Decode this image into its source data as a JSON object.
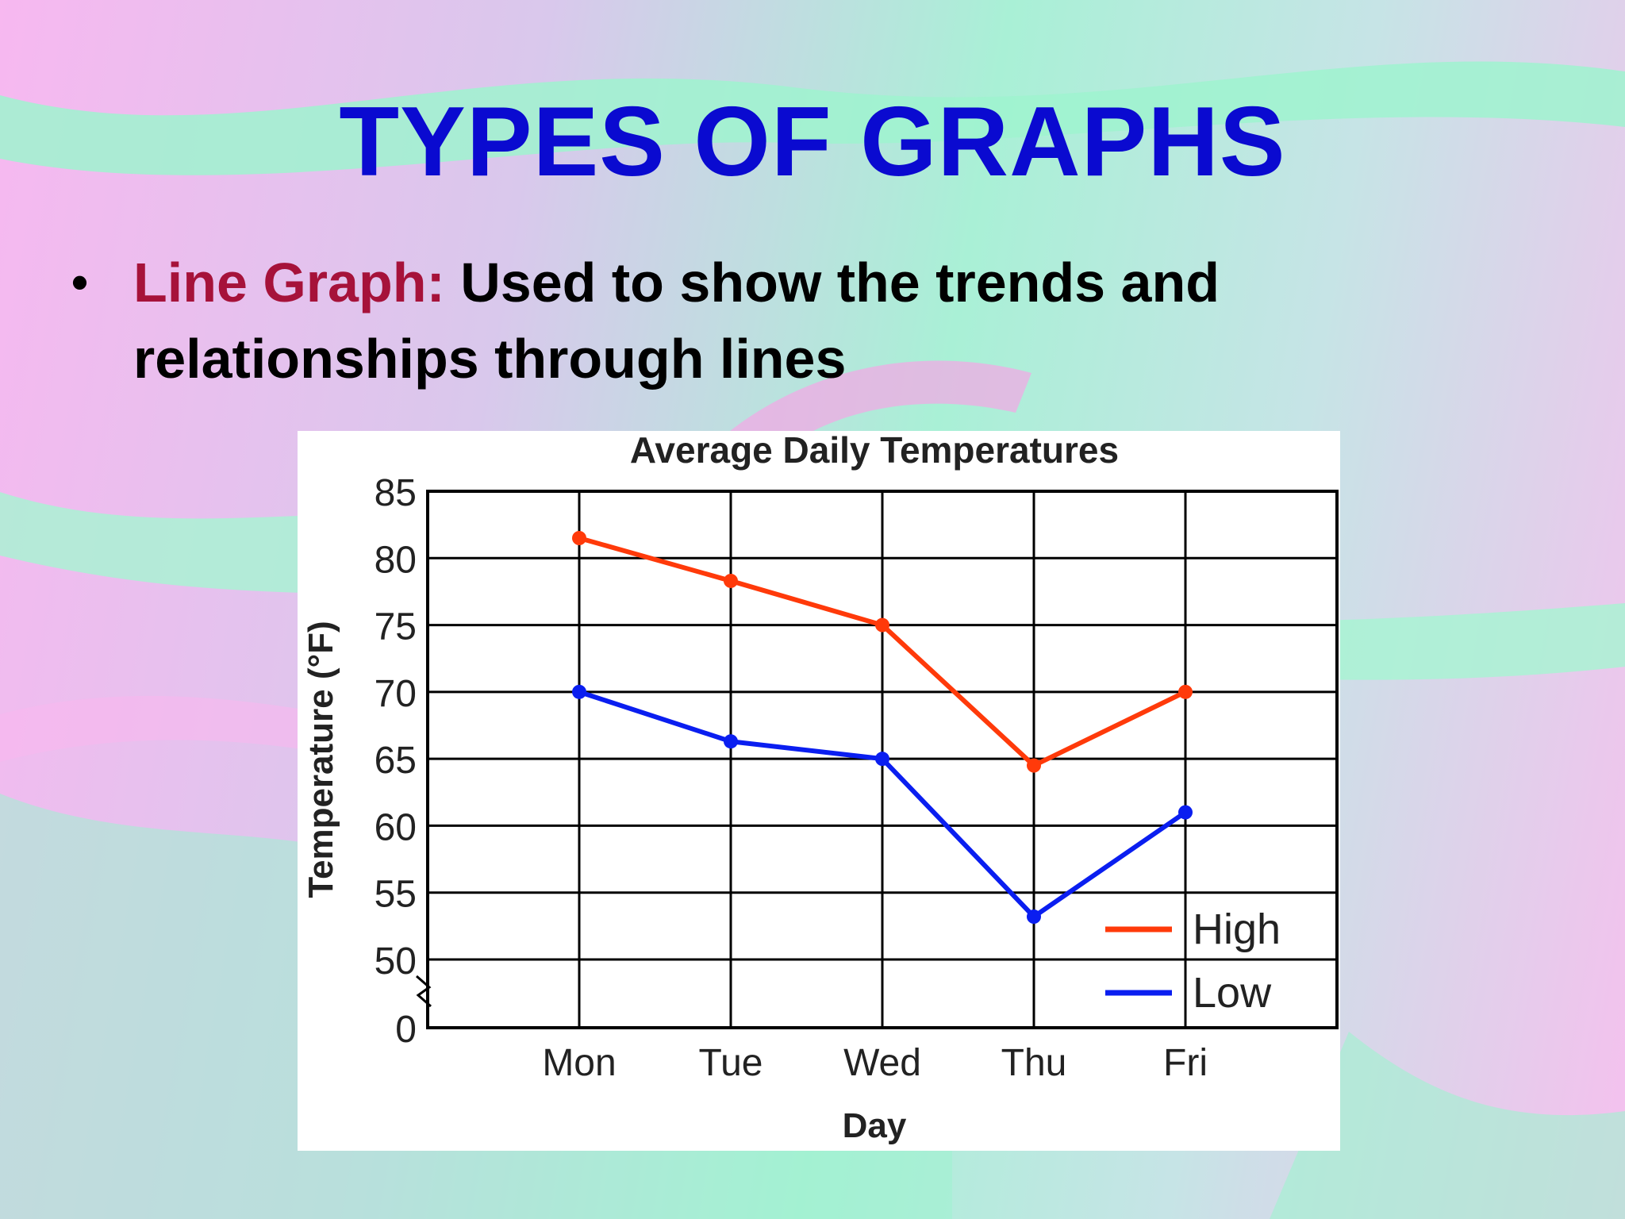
{
  "slide": {
    "title": "TYPES OF GRAPHS",
    "bullet": {
      "term": "Line Graph:",
      "text": " Used to show the trends and relationships through lines"
    }
  },
  "colors": {
    "title": "#0a0ad0",
    "term": "#a6123a",
    "high_series": "#ff3a0a",
    "low_series": "#0a1ef0"
  },
  "chart_data": {
    "type": "line",
    "title": "Average Daily Temperatures",
    "xlabel": "Day",
    "ylabel": "Temperature (°F)",
    "categories": [
      "Mon",
      "Tue",
      "Wed",
      "Thu",
      "Fri"
    ],
    "y_ticks": [
      "0",
      "50",
      "55",
      "60",
      "65",
      "70",
      "75",
      "80",
      "85"
    ],
    "ylim": [
      45,
      85
    ],
    "axis_break": true,
    "grid": true,
    "legend_position": "bottom-right",
    "series": [
      {
        "name": "High",
        "values": [
          81.5,
          78.3,
          75,
          64.5,
          70
        ]
      },
      {
        "name": "Low",
        "values": [
          70,
          66.3,
          65,
          53.2,
          61
        ]
      }
    ]
  }
}
